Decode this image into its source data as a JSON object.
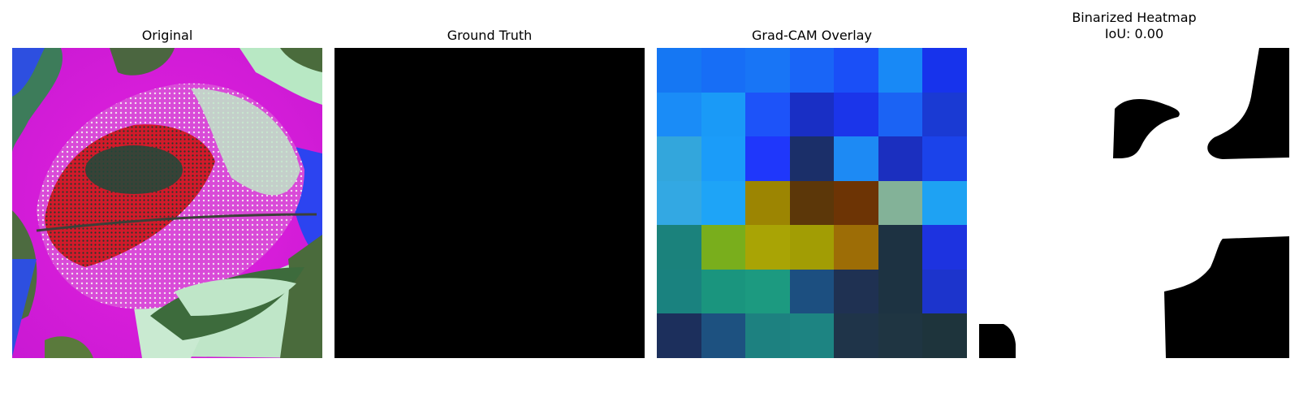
{
  "panels": [
    {
      "title": "Original"
    },
    {
      "title": "Ground Truth"
    },
    {
      "title": "Grad-CAM Overlay"
    },
    {
      "title_line1": "Binarized Heatmap",
      "title_line2": "IoU: 0.00"
    }
  ],
  "gradcam_cells": [
    [
      "#1577f3",
      "#176ef6",
      "#1875f6",
      "#1965f7",
      "#1a4ff7",
      "#1889f6",
      "#1733ec"
    ],
    [
      "#1a8cf7",
      "#1a9af7",
      "#1d53f9",
      "#192fc5",
      "#1b35ea",
      "#1b63f4",
      "#1a3ad3"
    ],
    [
      "#33a6dc",
      "#1b9cf9",
      "#1f37fb",
      "#1b2f69",
      "#1d8af4",
      "#1b2fbf",
      "#1b43ea"
    ],
    [
      "#33a8e3",
      "#1ea4f7",
      "#9c8502",
      "#5c3709",
      "#6d3405",
      "#83b298",
      "#1ea2f3"
    ],
    [
      "#1b827c",
      "#79ae1c",
      "#a9a405",
      "#a29d04",
      "#9d6d06",
      "#1d3242",
      "#1d33e0"
    ],
    [
      "#1a827f",
      "#1a957e",
      "#1c9a80",
      "#1c4f80",
      "#1f3152",
      "#1d3342",
      "#1c34cc"
    ],
    [
      "#1c2f5c",
      "#1d5180",
      "#1d8180",
      "#1d8482",
      "#1f3449",
      "#1f3542",
      "#1e343c"
    ]
  ]
}
